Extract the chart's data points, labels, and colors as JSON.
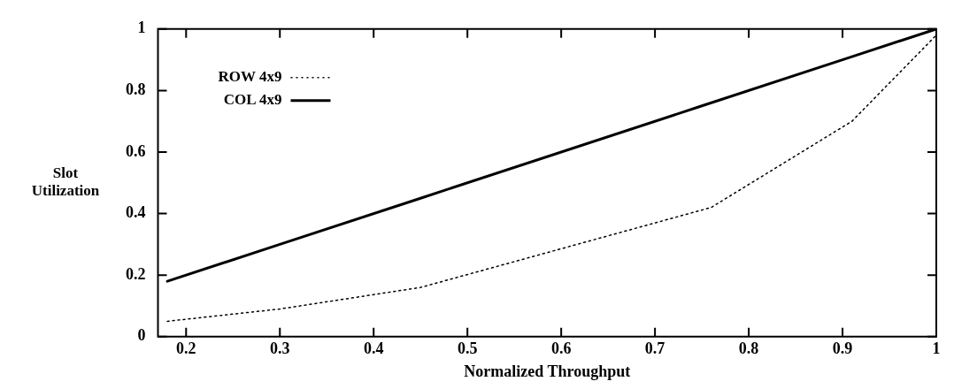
{
  "chart_data": {
    "type": "line",
    "xlabel": "Normalized Throughput",
    "ylabel": "Slot\nUtilization",
    "xlim": [
      0.17,
      1
    ],
    "xticks": [
      0.2,
      0.3,
      0.4,
      0.5,
      0.6,
      0.7,
      0.8,
      0.9,
      1
    ],
    "ylim": [
      0,
      1
    ],
    "yticks": [
      0,
      0.2,
      0.4,
      0.6,
      0.8,
      1
    ],
    "grid": false,
    "legend": "top left",
    "marker": "none",
    "series": [
      {
        "name": "ROW 4x9",
        "color": "#000000",
        "line_style": "dotted",
        "x": [
          0.18,
          0.3,
          0.45,
          0.76,
          0.91,
          1
        ],
        "values": [
          0.05,
          0.09,
          0.16,
          0.42,
          0.7,
          0.98
        ]
      },
      {
        "name": "COL 4x9",
        "color": "#000000",
        "line_style": "solid",
        "x": [
          0.18,
          0.3,
          0.45,
          0.75,
          0.91,
          1
        ],
        "values": [
          0.18,
          0.3,
          0.45,
          0.75,
          0.91,
          1
        ]
      }
    ]
  }
}
